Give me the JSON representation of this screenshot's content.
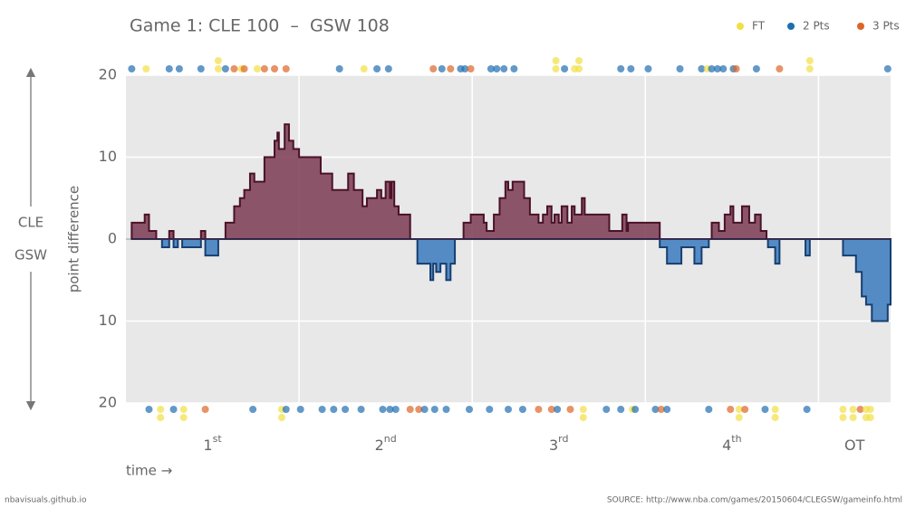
{
  "chart_data": {
    "type": "step-area",
    "title": "Game 1: CLE 100  –  GSW 108",
    "y_label": "point difference",
    "x_label": "time →",
    "up_team": "CLE",
    "down_team": "GSW",
    "xlim": [
      0,
      53
    ],
    "ylim": [
      -20,
      20
    ],
    "yticks": [
      {
        "value": -20,
        "label": "20"
      },
      {
        "value": -10,
        "label": "10"
      },
      0,
      10,
      20
    ],
    "period_ends": [
      12,
      24,
      36,
      48,
      53
    ],
    "periods": [
      {
        "label": "1",
        "sup": "st"
      },
      {
        "label": "2",
        "sup": "nd"
      },
      {
        "label": "3",
        "sup": "rd"
      },
      {
        "label": "4",
        "sup": "th"
      },
      {
        "label": "OT"
      }
    ],
    "lead_colors": [
      "#7b3a52",
      "#3a7bbf"
    ],
    "edge_colors": [
      "#4a1228",
      "#173f70"
    ],
    "x": [
      0.4,
      1.3,
      1.6,
      2.1,
      2.5,
      3.0,
      3.3,
      3.6,
      3.9,
      5.2,
      5.5,
      6.4,
      6.9,
      7.5,
      7.9,
      8.2,
      8.6,
      8.9,
      9.6,
      10.3,
      10.5,
      10.6,
      11.0,
      11.3,
      11.6,
      12.0,
      13.5,
      14.3,
      15.4,
      15.8,
      16.4,
      16.7,
      17.4,
      17.7,
      18.0,
      18.3,
      18.4,
      18.6,
      18.9,
      19.7,
      20.2,
      21.1,
      21.3,
      21.5,
      21.8,
      22.2,
      22.5,
      22.8,
      23.4,
      23.9,
      24.8,
      25.0,
      25.5,
      25.9,
      26.3,
      26.5,
      26.8,
      27.6,
      28.0,
      28.6,
      28.9,
      29.2,
      29.5,
      29.7,
      30.0,
      30.2,
      30.6,
      30.9,
      31.1,
      31.6,
      31.8,
      33.5,
      34.4,
      34.7,
      34.8,
      37.0,
      37.5,
      38.5,
      39.4,
      39.9,
      40.4,
      40.6,
      41.1,
      41.5,
      41.9,
      42.1,
      42.7,
      43.2,
      43.6,
      44.0,
      44.4,
      44.5,
      45.0,
      45.3,
      47.1,
      47.4,
      49.7,
      50.6,
      51.0,
      51.3,
      51.7,
      52.8
    ],
    "values": [
      2,
      3,
      1,
      0,
      -1,
      1,
      -1,
      0,
      -1,
      1,
      -2,
      0,
      2,
      4,
      5,
      6,
      8,
      7,
      10,
      12,
      13,
      11,
      14,
      12,
      11,
      10,
      8,
      6,
      8,
      6,
      4,
      5,
      6,
      5,
      7,
      5,
      7,
      4,
      3,
      0,
      -3,
      -5,
      -3,
      -4,
      -3,
      -5,
      -3,
      0,
      2,
      3,
      2,
      1,
      3,
      5,
      7,
      6,
      7,
      5,
      3,
      2,
      3,
      4,
      2,
      3,
      2,
      4,
      2,
      4,
      3,
      5,
      3,
      1,
      3,
      1,
      2,
      -1,
      -3,
      -1,
      -3,
      -1,
      0,
      2,
      1,
      3,
      4,
      2,
      4,
      2,
      3,
      1,
      0,
      -1,
      -3,
      0,
      -2,
      0,
      -2,
      -4,
      -7,
      -8,
      -10,
      -8
    ],
    "event_types": [
      {
        "points": 1,
        "name": "FT",
        "color": "#f2df45"
      },
      {
        "points": 2,
        "name": "2 Pts",
        "color": "#1f6eb0"
      },
      {
        "points": 3,
        "name": "3 Pts",
        "color": "#dd6526"
      }
    ],
    "cle_events": {
      "x": [
        0.4,
        1.4,
        3.0,
        3.7,
        5.2,
        6.4,
        6.4,
        6.9,
        7.5,
        8.0,
        8.2,
        9.1,
        9.6,
        10.3,
        11.1,
        14.8,
        16.5,
        17.4,
        18.2,
        21.3,
        21.9,
        22.5,
        23.2,
        23.5,
        23.9,
        25.3,
        25.7,
        26.2,
        26.9,
        29.8,
        29.8,
        30.4,
        31.1,
        31.4,
        31.4,
        34.3,
        35.0,
        36.2,
        38.4,
        39.9,
        40.3,
        40.6,
        41.0,
        41.4,
        42.1,
        42.3,
        43.7,
        45.3,
        47.4,
        47.4,
        52.8
      ],
      "points": [
        2,
        1,
        2,
        2,
        2,
        1,
        1,
        2,
        3,
        1,
        3,
        1,
        3,
        3,
        3,
        2,
        1,
        2,
        2,
        3,
        2,
        3,
        2,
        2,
        3,
        2,
        2,
        2,
        2,
        1,
        1,
        2,
        1,
        1,
        1,
        2,
        2,
        2,
        2,
        2,
        1,
        2,
        2,
        2,
        2,
        3,
        2,
        3,
        1,
        1,
        2
      ]
    },
    "gsw_events": {
      "x": [
        1.6,
        2.4,
        2.4,
        3.3,
        4.0,
        4.0,
        5.5,
        8.8,
        10.8,
        10.8,
        11.1,
        12.1,
        13.6,
        14.4,
        15.2,
        16.3,
        17.8,
        18.3,
        18.7,
        19.7,
        20.3,
        20.7,
        21.4,
        22.2,
        23.8,
        25.2,
        26.5,
        27.5,
        28.6,
        29.5,
        29.9,
        30.8,
        31.7,
        31.7,
        33.3,
        34.3,
        35.1,
        35.3,
        36.7,
        37.1,
        37.5,
        40.4,
        41.9,
        42.5,
        42.5,
        42.9,
        44.3,
        45.0,
        45.0,
        47.2,
        49.7,
        49.7,
        50.4,
        50.4,
        50.9,
        51.3,
        51.3,
        51.6,
        51.6
      ],
      "points": [
        2,
        1,
        1,
        2,
        1,
        1,
        3,
        2,
        1,
        1,
        2,
        2,
        2,
        2,
        2,
        2,
        2,
        2,
        2,
        3,
        3,
        2,
        2,
        2,
        2,
        2,
        2,
        2,
        3,
        3,
        2,
        3,
        1,
        1,
        2,
        2,
        1,
        2,
        2,
        3,
        2,
        2,
        3,
        1,
        1,
        3,
        2,
        1,
        1,
        2,
        1,
        1,
        1,
        1,
        3,
        1,
        1,
        1,
        1
      ]
    },
    "credit": "nbavisuals.github.io",
    "source": "SOURCE: http://www.nba.com/games/20150604/CLEGSW/gameinfo.html"
  }
}
